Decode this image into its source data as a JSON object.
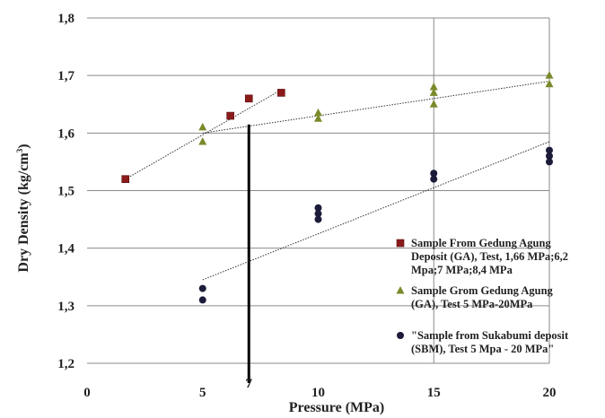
{
  "chart_data": {
    "type": "scatter",
    "title": "",
    "xlabel": "Pressure (MPa)",
    "ylabel": "Dry Density (kg/cm³)",
    "ylabel_parts": {
      "main": "Dry Density (kg/cm",
      "sup": "3",
      "end": ")"
    },
    "xlim": [
      0,
      20
    ],
    "ylim": [
      1.2,
      1.8
    ],
    "x_ticks": [
      {
        "value": 0,
        "label": "0"
      },
      {
        "value": 5,
        "label": "5"
      },
      {
        "value": 7,
        "label": "7"
      },
      {
        "value": 10,
        "label": "10"
      },
      {
        "value": 15,
        "label": "15"
      },
      {
        "value": 20,
        "label": "20"
      }
    ],
    "y_ticks": [
      {
        "value": 1.2,
        "label": "1,2"
      },
      {
        "value": 1.3,
        "label": "1,3"
      },
      {
        "value": 1.4,
        "label": "1,4"
      },
      {
        "value": 1.5,
        "label": "1,5"
      },
      {
        "value": 1.6,
        "label": "1,6"
      },
      {
        "value": 1.7,
        "label": "1,7"
      },
      {
        "value": 1.8,
        "label": "1,8"
      }
    ],
    "grid": true,
    "legend_position": "right",
    "series": [
      {
        "name": "Sample From Gedung Agung Deposit (GA), Test, 1,66 MPa;6,2 Mpa;7 MPa;8,4 MPa",
        "legend_lines": [
          "Sample From Gedung Agung",
          "Deposit (GA), Test, 1,66 MPa;6,2",
          "Mpa;7 MPa;8,4 MPa"
        ],
        "marker": "square",
        "color": "#8b1a1a",
        "points": [
          [
            1.66,
            1.52
          ],
          [
            6.2,
            1.63
          ],
          [
            7,
            1.66
          ],
          [
            8.4,
            1.67
          ]
        ],
        "trendline": [
          [
            1.66,
            1.52
          ],
          [
            8.4,
            1.675
          ]
        ]
      },
      {
        "name": "Sample Grom Gedung Agung (GA), Test 5 MPa-20MPa",
        "legend_lines": [
          "Sample Grom Gedung Agung",
          "(GA), Test 5 MPa-20MPa"
        ],
        "marker": "triangle",
        "color": "#7a8a2a",
        "points": [
          [
            5,
            1.61
          ],
          [
            5,
            1.585
          ],
          [
            10,
            1.635
          ],
          [
            10,
            1.625
          ],
          [
            15,
            1.68
          ],
          [
            15,
            1.67
          ],
          [
            15,
            1.65
          ],
          [
            20,
            1.7
          ],
          [
            20,
            1.685
          ]
        ],
        "trendline": [
          [
            5,
            1.6
          ],
          [
            20,
            1.69
          ]
        ]
      },
      {
        "name": "\"Sample from Sukabumi deposit (SBM), Test 5 Mpa - 20 MPa\"",
        "legend_lines": [
          "\"Sample from Sukabumi deposit",
          "(SBM), Test 5 Mpa - 20 MPa\""
        ],
        "marker": "circle",
        "color": "#1c1c3a",
        "points": [
          [
            5,
            1.33
          ],
          [
            5,
            1.31
          ],
          [
            10,
            1.47
          ],
          [
            10,
            1.46
          ],
          [
            10,
            1.45
          ],
          [
            15,
            1.53
          ],
          [
            15,
            1.52
          ],
          [
            20,
            1.57
          ],
          [
            20,
            1.56
          ],
          [
            20,
            1.55
          ]
        ],
        "trendline": [
          [
            5,
            1.345
          ],
          [
            20,
            1.585
          ]
        ]
      }
    ],
    "annotation_line": {
      "x": 7,
      "y_from": 1.2,
      "y_to": 1.615
    }
  }
}
